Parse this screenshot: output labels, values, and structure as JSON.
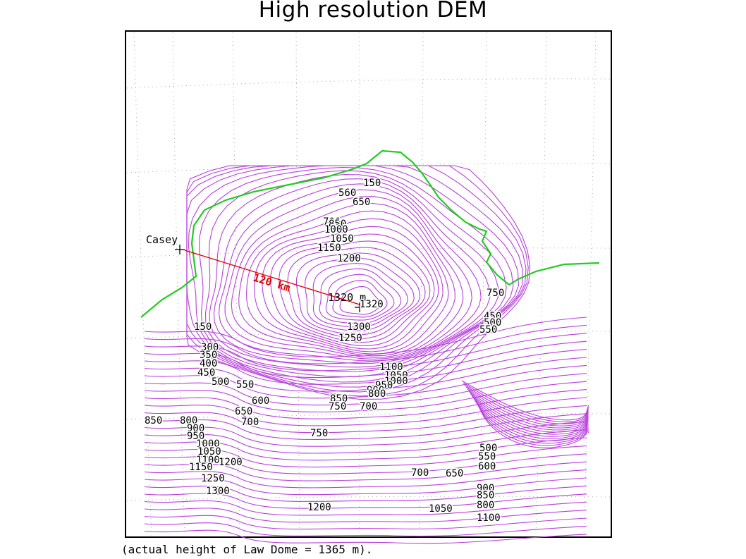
{
  "title": "High resolution DEM",
  "caption": "(actual height of Law Dome = 1365 m).",
  "colors": {
    "contour": "#b83fdc",
    "coastline": "#22cc22",
    "distance_line": "#e00000",
    "grid": "#aaaaaa",
    "frame": "#000000"
  },
  "map": {
    "casey_label": "Casey",
    "summit_label": "1320  m",
    "distance_label": "120 km",
    "contour_labels": [
      "150",
      "560",
      "650",
      "700",
      "850",
      "1000",
      "1050",
      "1150",
      "1200",
      "1320",
      "1300",
      "1250",
      "1100",
      "1050",
      "1000",
      "950",
      "900",
      "850",
      "800",
      "750",
      "700",
      "150",
      "300",
      "350",
      "400",
      "450",
      "500",
      "550",
      "600",
      "650",
      "700",
      "800",
      "850",
      "900",
      "950",
      "1000",
      "1050",
      "1100",
      "1150",
      "1200",
      "1250",
      "1300",
      "1200",
      "750",
      "500",
      "550",
      "600",
      "700",
      "650",
      "900",
      "850",
      "800",
      "1050",
      "1100",
      "750",
      "450",
      "500",
      "550"
    ]
  }
}
